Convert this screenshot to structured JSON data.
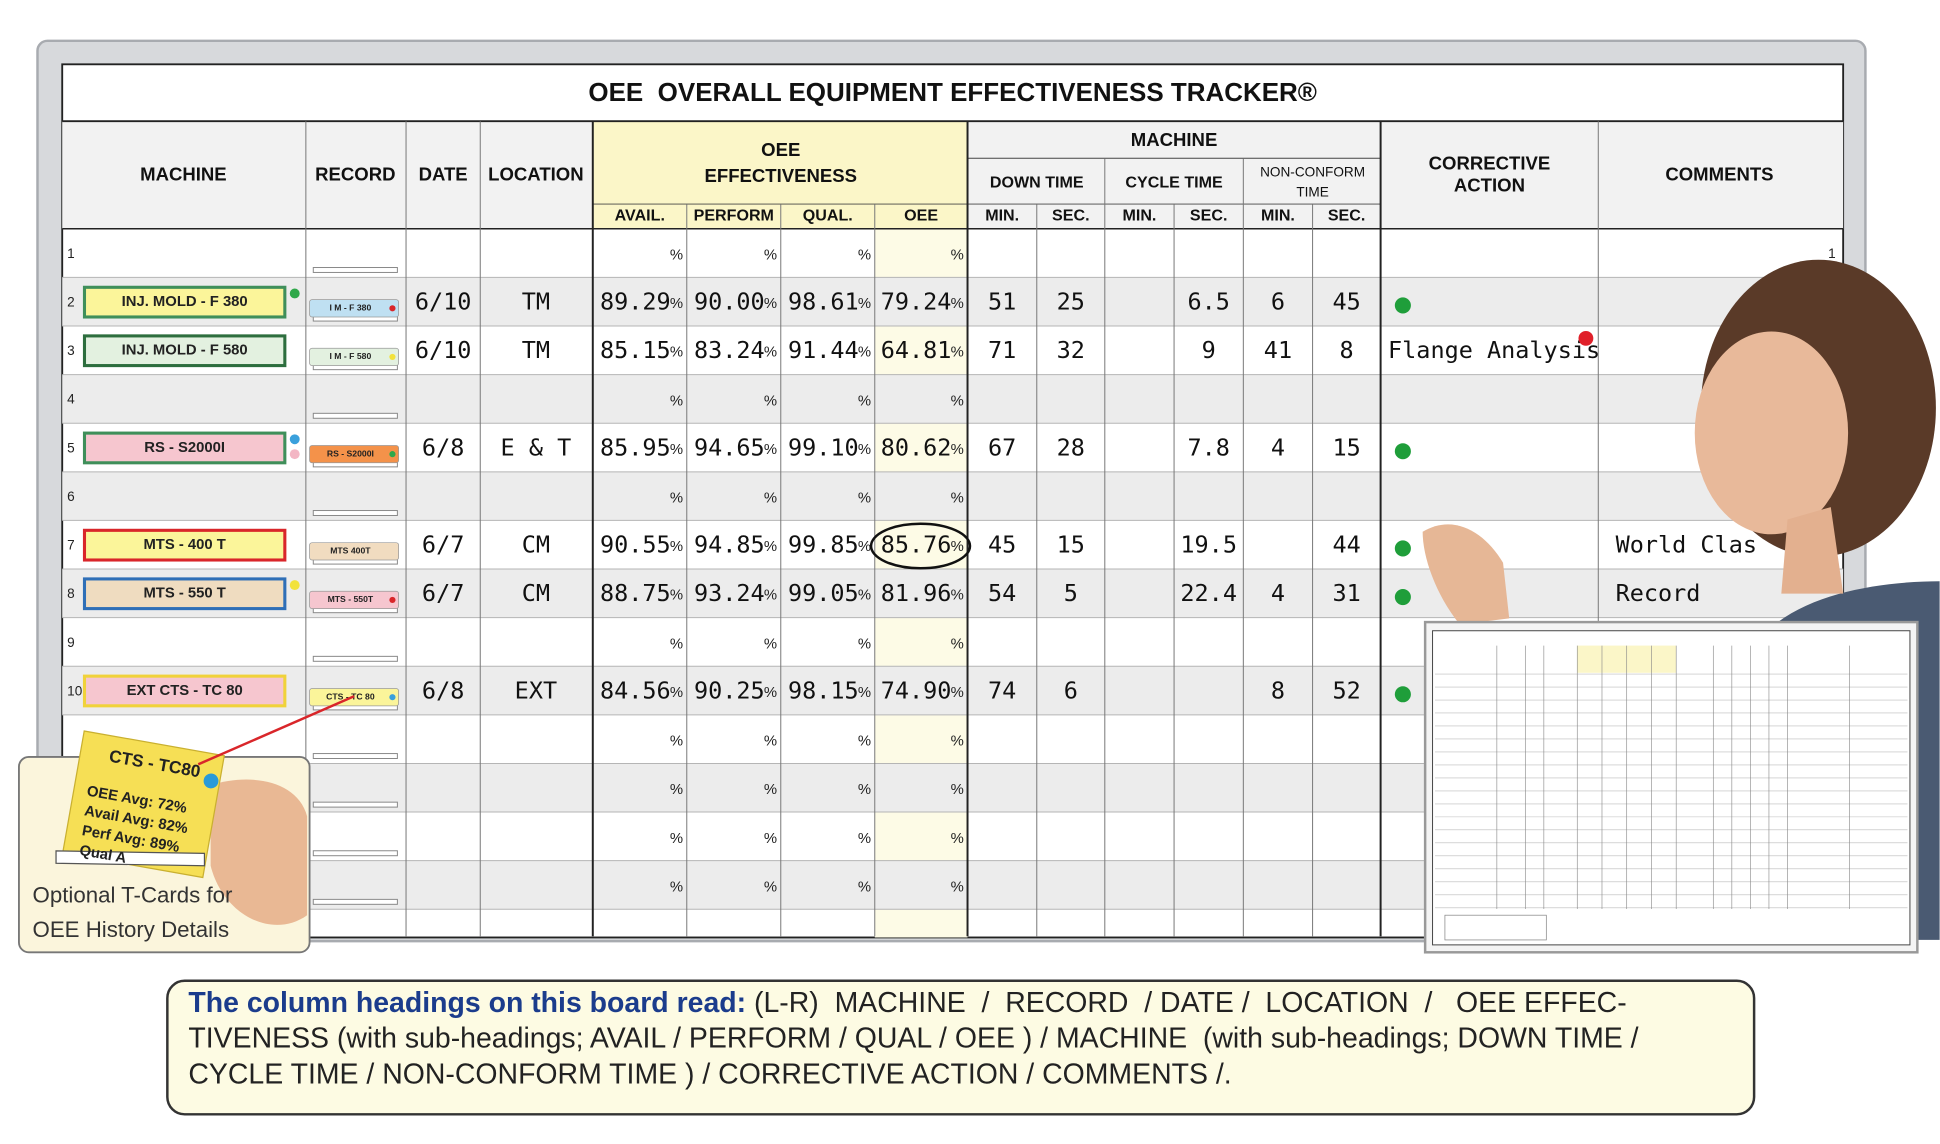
{
  "header": {
    "title": "OEE  OVERALL EQUIPMENT EFFECTIVENESS TRACKER®"
  },
  "columns": {
    "machine": "MACHINE",
    "record": "RECORD",
    "date": "DATE",
    "location": "LOCATION",
    "oee_group": [
      "OEE",
      "EFFECTIVENESS"
    ],
    "machine_group": "MACHINE",
    "down_time": "DOWN TIME",
    "cycle_time": "CYCLE TIME",
    "non_conform_time": [
      "NON-CONFORM",
      "TIME"
    ],
    "corrective_action": [
      "CORRECTIVE",
      "ACTION"
    ],
    "comments": "COMMENTS",
    "sub": [
      "AVAIL.",
      "PERFORM",
      "QUAL.",
      "OEE",
      "MIN.",
      "SEC.",
      "MIN.",
      "SEC.",
      "MIN.",
      "SEC."
    ]
  },
  "percent_sign": "%",
  "rows": [
    {
      "no": "1",
      "end_no": "1"
    },
    {
      "no": "2",
      "machine": "INJ. MOLD - F 380",
      "machine_color": "#fbf59a",
      "machine_border": "#3f8f5a",
      "dots": [
        "#2fa84a"
      ],
      "record": "I M - F 380",
      "record_color": "#bfe0f2",
      "record_dot": "#d9262a",
      "date": "6/10",
      "location": "TM",
      "avail": "89.29",
      "perform": "90.00",
      "qual": "98.61",
      "oee": "79.24",
      "down_min": "51",
      "down_sec": "25",
      "cycle_sec": "6.5",
      "nc_min": "6",
      "nc_sec": "45",
      "status": "#1f9e3a"
    },
    {
      "no": "3",
      "machine": "INJ. MOLD - F 580",
      "machine_color": "#e3f1e0",
      "machine_border": "#2d6e3e",
      "record": "I M - F 580",
      "record_color": "#e3f1e0",
      "record_dot": "#f2e23b",
      "date": "6/10",
      "location": "TM",
      "avail": "85.15",
      "perform": "83.24",
      "qual": "91.44",
      "oee": "64.81",
      "down_min": "71",
      "down_sec": "32",
      "cycle_sec": "9",
      "nc_min": "41",
      "nc_sec": "8",
      "action": "Flange Analysis",
      "red": [
        "qual",
        "oee",
        "nc_min",
        "nc_sec",
        "action"
      ],
      "action_dot": "#e0202a"
    },
    {
      "no": "4"
    },
    {
      "no": "5",
      "machine": "RS - S2000I",
      "machine_color": "#f6c6cf",
      "machine_border": "#3f8f5a",
      "dots": [
        "#3aa0dc",
        "#f3b6c4"
      ],
      "record": "RS - S2000I",
      "record_color": "#f4924a",
      "record_dot": "#2fa84a",
      "date": "6/8",
      "location": "E & T",
      "avail": "85.95",
      "perform": "94.65",
      "qual": "99.10",
      "oee": "80.62",
      "down_min": "67",
      "down_sec": "28",
      "cycle_sec": "7.8",
      "nc_min": "4",
      "nc_sec": "15",
      "status": "#1f9e3a"
    },
    {
      "no": "6"
    },
    {
      "no": "7",
      "machine": "MTS - 400 T",
      "machine_color": "#fbf59a",
      "machine_border": "#d9262a",
      "record": "MTS 400T",
      "record_color": "#f1dcc0",
      "date": "6/7",
      "location": "CM",
      "avail": "90.55",
      "perform": "94.85",
      "qual": "99.85",
      "oee": "85.76",
      "oee_circled": true,
      "down_min": "45",
      "down_sec": "15",
      "cycle_sec": "19.5",
      "nc_sec": "44",
      "status": "#1f9e3a",
      "comment": "World Clas"
    },
    {
      "no": "8",
      "machine": "MTS - 550 T",
      "machine_color": "#efdcc0",
      "machine_border": "#2f6fb7",
      "dots": [
        "#f2e23b"
      ],
      "record": "MTS - 550T",
      "record_color": "#f6c6cf",
      "record_dot": "#d9262a",
      "date": "6/7",
      "location": "CM",
      "avail": "88.75",
      "perform": "93.24",
      "qual": "99.05",
      "oee": "81.96",
      "down_min": "54",
      "down_sec": "5",
      "cycle_sec": "22.4",
      "nc_min": "4",
      "nc_sec": "31",
      "status": "#1f9e3a",
      "comment": "Record"
    },
    {
      "no": "9"
    },
    {
      "no": "10",
      "machine": "EXT CTS - TC 80",
      "machine_color": "#f6c6cf",
      "machine_border": "#f0d23a",
      "record": "CTS - TC 80",
      "record_color": "#fbf59a",
      "record_dot": "#3aa0dc",
      "date": "6/8",
      "location": "EXT",
      "avail": "84.56",
      "perform": "90.25",
      "qual": "98.15",
      "oee": "74.90",
      "down_min": "74",
      "down_sec": "6",
      "nc_min": "8",
      "nc_sec": "52",
      "status": "#1f9e3a"
    },
    {},
    {},
    {},
    {}
  ],
  "tcard": {
    "title": "CTS - TC80",
    "lines": [
      "OEE Avg: 72%",
      "Avail Avg: 82%",
      "Perf Avg: 89%",
      "Qual A"
    ],
    "caption": [
      "Optional T-Cards for",
      "OEE History Details"
    ]
  },
  "caption": {
    "lead": "The column headings on this board read:",
    "lines": [
      " (L-R)  MACHINE  /  RECORD  / DATE /  LOCATION  /   OEE EFFEC-",
      "TIVENESS (with sub-headings; AVAIL / PERFORM / QUAL / OEE ) / MACHINE  (with sub-headings; DOWN TIME /",
      "CYCLE TIME / NON-CONFORM TIME ) / CORRECTIVE ACTION / COMMENTS /."
    ]
  }
}
